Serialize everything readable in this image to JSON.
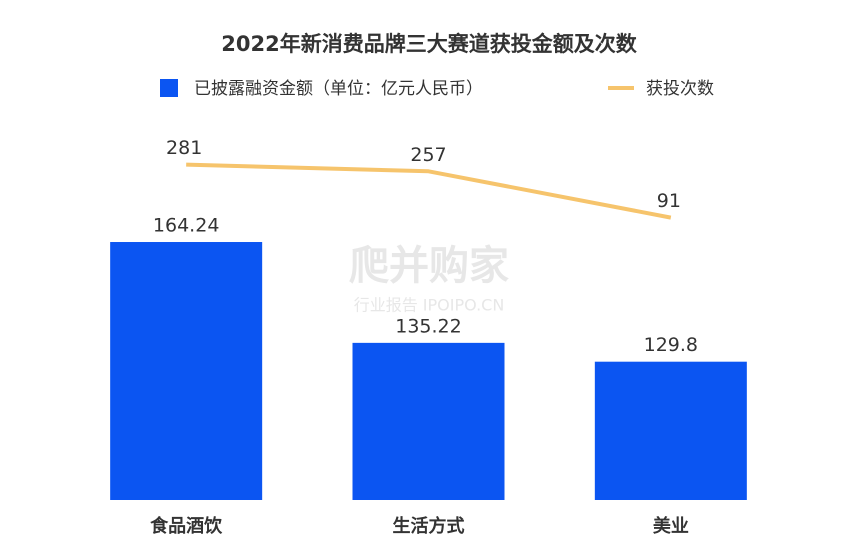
{
  "chart_data": {
    "type": "bar-line",
    "title": "2022年新消费品牌三大赛道获投金额及次数",
    "categories": [
      "食品酒饮",
      "生活方式",
      "美业"
    ],
    "series": [
      {
        "name": "已披露融资金额（单位：亿元人民币）",
        "type": "bar",
        "color": "#0b55f2",
        "values": [
          164.24,
          135.22,
          129.8
        ]
      },
      {
        "name": "获投次数",
        "type": "line",
        "axis": "y2",
        "color": "#f6c46c",
        "values": [
          281,
          257,
          91
        ]
      }
    ],
    "ylim": [
      90,
      170
    ],
    "y2lim": [
      0,
      300
    ],
    "watermark": {
      "main": "爬并购家",
      "sub": "行业报告 IPOIPO.CN"
    }
  }
}
